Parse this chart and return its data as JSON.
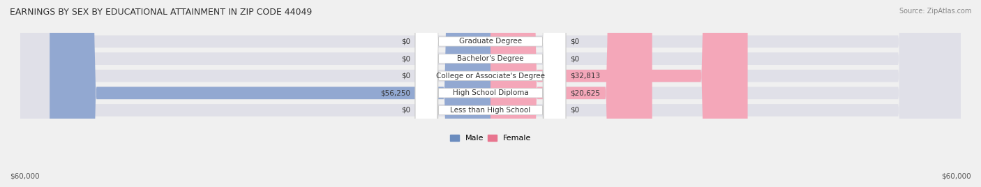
{
  "title": "EARNINGS BY SEX BY EDUCATIONAL ATTAINMENT IN ZIP CODE 44049",
  "source": "Source: ZipAtlas.com",
  "categories": [
    "Less than High School",
    "High School Diploma",
    "College or Associate's Degree",
    "Bachelor's Degree",
    "Graduate Degree"
  ],
  "male_values": [
    0,
    56250,
    0,
    0,
    0
  ],
  "female_values": [
    0,
    20625,
    32813,
    0,
    0
  ],
  "male_color": "#92a8d1",
  "female_color": "#f4a7b9",
  "male_color_dark": "#6b8cbe",
  "female_color_dark": "#e8758f",
  "max_value": 60000,
  "bg_color": "#f0f0f0",
  "bar_bg_color": "#e8e8e8",
  "legend_male_color": "#6b8cbe",
  "legend_female_color": "#e8758f",
  "xlabel_left": "$60,000",
  "xlabel_right": "$60,000"
}
